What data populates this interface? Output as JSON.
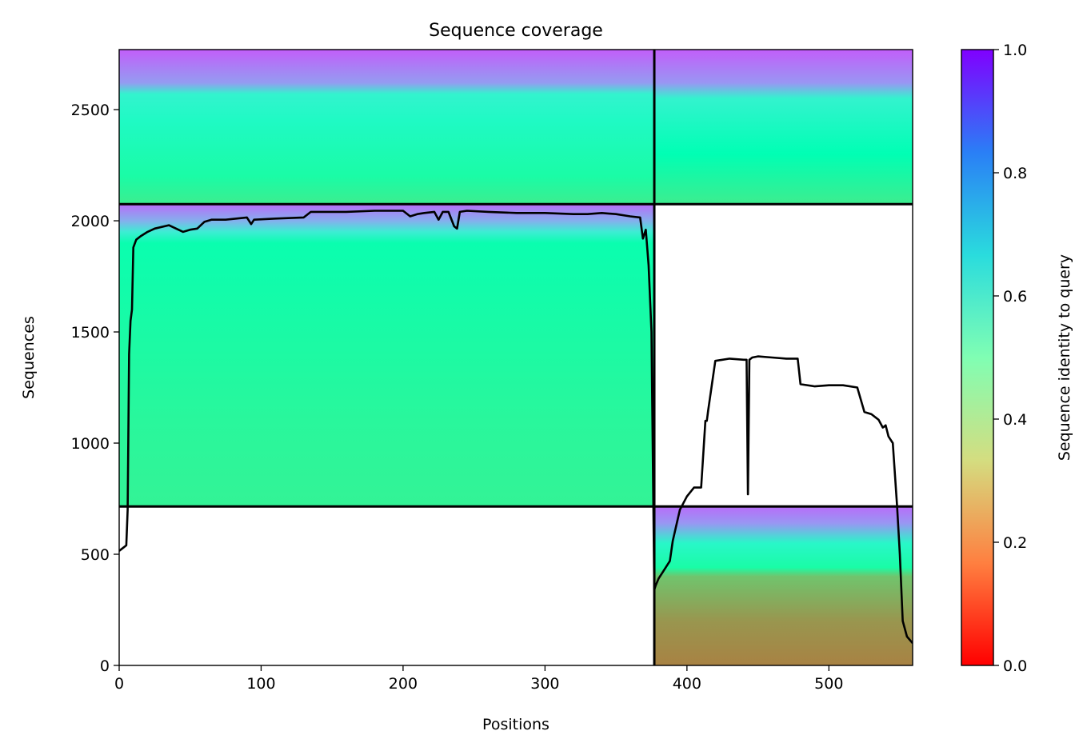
{
  "chart_data": {
    "type": "heatmap",
    "title": "Sequence coverage",
    "xlabel": "Positions",
    "ylabel": "Sequences",
    "xlim": [
      0,
      559
    ],
    "ylim": [
      0,
      2770
    ],
    "x_ticks": [
      {
        "value": 0,
        "label": "0"
      },
      {
        "value": 100,
        "label": "100"
      },
      {
        "value": 200,
        "label": "200"
      },
      {
        "value": 300,
        "label": "300"
      },
      {
        "value": 400,
        "label": "400"
      },
      {
        "value": 500,
        "label": "500"
      }
    ],
    "y_ticks": [
      {
        "value": 0,
        "label": "0"
      },
      {
        "value": 500,
        "label": "500"
      },
      {
        "value": 1000,
        "label": "1000"
      },
      {
        "value": 1500,
        "label": "1500"
      },
      {
        "value": 2000,
        "label": "2000"
      },
      {
        "value": 2500,
        "label": "2500"
      }
    ],
    "colormap": "rainbow_r",
    "colorbar": {
      "label": "Sequence identity to query",
      "range": [
        0.0,
        1.0
      ],
      "ticks": [
        {
          "value": 0.0,
          "label": "0.0"
        },
        {
          "value": 0.2,
          "label": "0.2"
        },
        {
          "value": 0.4,
          "label": "0.4"
        },
        {
          "value": 0.6,
          "label": "0.6"
        },
        {
          "value": 0.8,
          "label": "0.8"
        },
        {
          "value": 1.0,
          "label": "1.0"
        }
      ]
    },
    "domain_boundaries": {
      "x": [
        377
      ],
      "y": [
        715,
        2075
      ]
    },
    "blocks": [
      {
        "x": [
          0,
          377
        ],
        "y": [
          715,
          2075
        ],
        "identity_stops": [
          {
            "y": 715,
            "identity": 0.4
          },
          {
            "y": 1100,
            "identity": 0.42
          },
          {
            "y": 1900,
            "identity": 0.48
          },
          {
            "y": 1950,
            "identity": 0.62
          },
          {
            "y": 2000,
            "identity": 0.76
          },
          {
            "y": 2075,
            "identity": 0.86
          }
        ]
      },
      {
        "x": [
          0,
          377
        ],
        "y": [
          2075,
          2770
        ],
        "identity_stops": [
          {
            "y": 2075,
            "identity": 0.38
          },
          {
            "y": 2200,
            "identity": 0.45
          },
          {
            "y": 2450,
            "identity": 0.56
          },
          {
            "y": 2570,
            "identity": 0.6
          },
          {
            "y": 2620,
            "identity": 0.79
          },
          {
            "y": 2770,
            "identity": 0.88
          }
        ]
      },
      {
        "x": [
          377,
          559
        ],
        "y": [
          2075,
          2770
        ],
        "identity_stops": [
          {
            "y": 2075,
            "identity": 0.38
          },
          {
            "y": 2300,
            "identity": 0.5
          },
          {
            "y": 2550,
            "identity": 0.6
          },
          {
            "y": 2620,
            "identity": 0.8
          },
          {
            "y": 2770,
            "identity": 0.88
          }
        ]
      },
      {
        "x": [
          377,
          559
        ],
        "y": [
          0,
          715
        ],
        "identity_stops": [
          {
            "y": 0,
            "identity": 0.17
          },
          {
            "y": 200,
            "identity": 0.2
          },
          {
            "y": 400,
            "identity": 0.28
          },
          {
            "y": 440,
            "identity": 0.45
          },
          {
            "y": 550,
            "identity": 0.58
          },
          {
            "y": 640,
            "identity": 0.8
          },
          {
            "y": 715,
            "identity": 0.86
          }
        ]
      }
    ],
    "coverage_line": {
      "x": [
        0,
        3,
        5,
        6,
        7,
        8,
        9,
        10,
        12,
        15,
        20,
        25,
        35,
        45,
        50,
        55,
        60,
        65,
        75,
        90,
        93,
        95,
        110,
        130,
        135,
        140,
        160,
        180,
        200,
        205,
        210,
        215,
        222,
        225,
        228,
        232,
        236,
        238,
        240,
        245,
        260,
        280,
        300,
        320,
        330,
        340,
        350,
        360,
        367,
        369,
        371,
        373,
        375,
        377,
        378,
        380,
        383,
        385,
        388,
        390,
        395,
        400,
        405,
        410,
        413,
        414,
        415,
        420,
        425,
        430,
        440,
        442,
        443,
        444,
        446,
        450,
        460,
        470,
        478,
        480,
        490,
        500,
        510,
        520,
        525,
        530,
        535,
        538,
        540,
        542,
        545,
        548,
        550,
        552,
        555,
        559
      ],
      "y": [
        515,
        530,
        540,
        700,
        1400,
        1550,
        1600,
        1880,
        1915,
        1930,
        1950,
        1965,
        1980,
        1950,
        1960,
        1965,
        1995,
        2005,
        2005,
        2015,
        1985,
        2005,
        2010,
        2015,
        2040,
        2040,
        2040,
        2045,
        2045,
        2020,
        2030,
        2035,
        2040,
        2005,
        2040,
        2040,
        1975,
        1965,
        2040,
        2045,
        2040,
        2035,
        2035,
        2030,
        2030,
        2035,
        2030,
        2020,
        2015,
        1920,
        1960,
        1800,
        1500,
        340,
        360,
        390,
        420,
        440,
        470,
        560,
        700,
        760,
        800,
        800,
        1100,
        1100,
        1150,
        1370,
        1375,
        1380,
        1375,
        1375,
        770,
        1375,
        1385,
        1390,
        1385,
        1380,
        1380,
        1265,
        1255,
        1260,
        1260,
        1250,
        1140,
        1130,
        1105,
        1070,
        1080,
        1030,
        1000,
        720,
        500,
        200,
        130,
        100
      ]
    }
  }
}
